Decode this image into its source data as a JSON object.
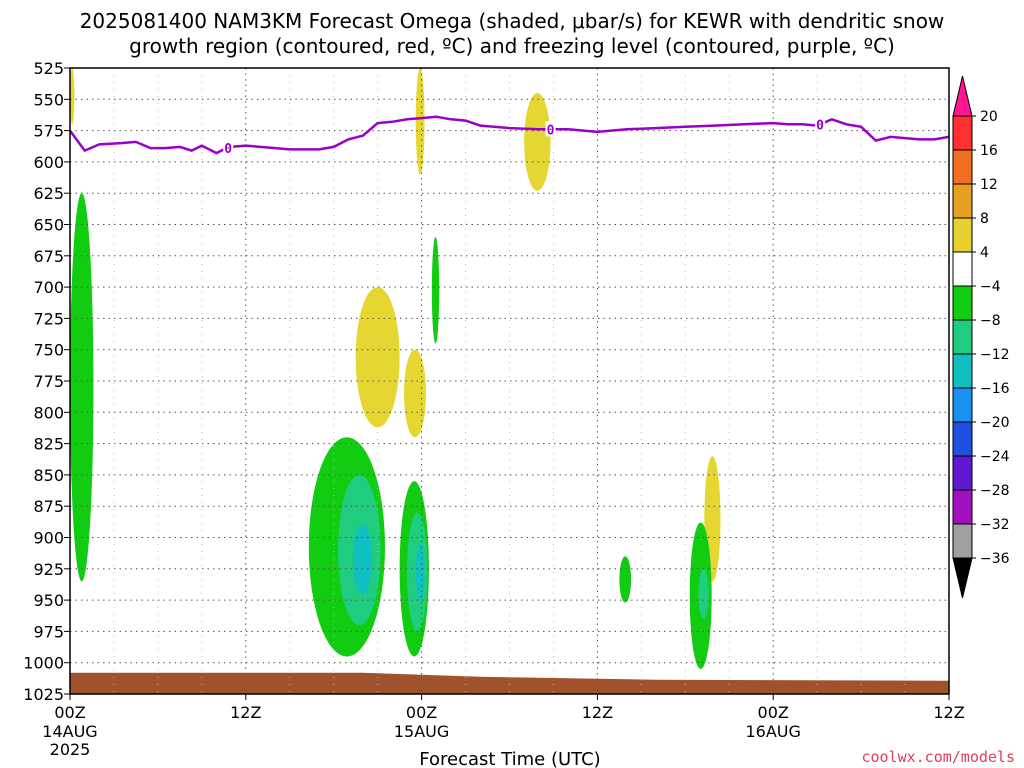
{
  "title_line1": "2025081400 NAM3KM Forecast Omega (shaded, μbar/s) for KEWR with dendritic snow",
  "title_line2": "growth region (contoured, red, ºC) and freezing level (contoured, purple, ºC)",
  "credit": "coolwx.com/models",
  "chart_data": {
    "type": "heatmap",
    "xlabel": "Forecast Time (UTC)",
    "ylabel": "",
    "x_range_hours": [
      0,
      60
    ],
    "x_ticks": [
      {
        "hour": 0,
        "label": "00Z",
        "sub1": "14AUG",
        "sub2": "2025"
      },
      {
        "hour": 12,
        "label": "12Z",
        "sub1": "",
        "sub2": ""
      },
      {
        "hour": 24,
        "label": "00Z",
        "sub1": "15AUG",
        "sub2": ""
      },
      {
        "hour": 36,
        "label": "12Z",
        "sub1": "",
        "sub2": ""
      },
      {
        "hour": 48,
        "label": "00Z",
        "sub1": "16AUG",
        "sub2": ""
      },
      {
        "hour": 60,
        "label": "12Z",
        "sub1": "",
        "sub2": ""
      }
    ],
    "y_range_hPa": [
      525,
      1025
    ],
    "y_ticks": [
      "525",
      "550",
      "575",
      "600",
      "625",
      "650",
      "675",
      "700",
      "725",
      "750",
      "775",
      "800",
      "825",
      "850",
      "875",
      "900",
      "925",
      "950",
      "975",
      "1000",
      "1025"
    ],
    "grid": true,
    "colorbar": {
      "units": "μbar/s",
      "labels": [
        "20",
        "16",
        "12",
        "8",
        "4",
        "-4",
        "-8",
        "-12",
        "-16",
        "-20",
        "-24",
        "-28",
        "-32",
        "-36"
      ],
      "colors": [
        "#ff1493",
        "#ff3030",
        "#f07020",
        "#e8a020",
        "#e8d030",
        "#ffffff",
        "#11cc11",
        "#20cc80",
        "#10c0c0",
        "#1890f0",
        "#2050e0",
        "#6018d0",
        "#a010c0",
        "#a0a0a0",
        "#000000"
      ]
    },
    "freezing_level": {
      "label": "0",
      "hours": [
        0,
        1,
        2,
        3.5,
        4.5,
        5.5,
        6.5,
        7.5,
        8.3,
        9,
        10,
        10.5,
        11,
        12,
        13,
        14,
        15,
        16,
        17,
        18,
        19,
        20,
        21,
        22,
        23,
        24,
        25,
        26,
        27,
        28,
        30,
        32,
        34,
        36,
        38,
        40,
        42,
        44,
        46,
        48,
        49,
        50,
        51,
        52,
        53,
        54,
        55,
        56,
        57,
        58,
        59,
        60
      ],
      "pressure": [
        575,
        591,
        586,
        585,
        584,
        589,
        589,
        588,
        591,
        587,
        593,
        590,
        588,
        587,
        588,
        589,
        590,
        590,
        590,
        588,
        582,
        579,
        569,
        568,
        566,
        565,
        564,
        566,
        567,
        571,
        573,
        574,
        574,
        576,
        574,
        573,
        572,
        571,
        570,
        569,
        570,
        570,
        571,
        566,
        570,
        572,
        583,
        580,
        581,
        582,
        582,
        580
      ]
    },
    "omega_regions": [
      {
        "level": "4 to 8",
        "hours": [
          0,
          0.3
        ],
        "pressure": [
          525,
          570
        ]
      },
      {
        "level": "4 to 8",
        "hours": [
          23.6,
          24.2
        ],
        "pressure": [
          525,
          610
        ]
      },
      {
        "level": "4 to 8",
        "hours": [
          31,
          32.8
        ],
        "pressure": [
          545,
          623
        ]
      },
      {
        "level": "4 to 8",
        "hours": [
          19.5,
          22.5
        ],
        "pressure": [
          700,
          812
        ]
      },
      {
        "level": "4 to 8",
        "hours": [
          22.8,
          24.3
        ],
        "pressure": [
          750,
          820
        ]
      },
      {
        "level": "4 to 8",
        "hours": [
          43.3,
          44.4
        ],
        "pressure": [
          835,
          935
        ]
      },
      {
        "level": "-4 to -8",
        "hours": [
          0,
          1.6
        ],
        "pressure": [
          625,
          935
        ]
      },
      {
        "level": "-4 to -8",
        "hours": [
          24.7,
          25.2
        ],
        "pressure": [
          660,
          745
        ]
      },
      {
        "level": "-4 to -8",
        "hours": [
          16.3,
          21.5
        ],
        "pressure": [
          820,
          995
        ]
      },
      {
        "level": "-4 to -8",
        "hours": [
          22.5,
          24.5
        ],
        "pressure": [
          855,
          995
        ]
      },
      {
        "level": "-4 to -8",
        "hours": [
          37.5,
          38.3
        ],
        "pressure": [
          915,
          952
        ]
      },
      {
        "level": "-4 to -8",
        "hours": [
          42.3,
          43.8
        ],
        "pressure": [
          888,
          1005
        ]
      },
      {
        "level": "-8 to -12",
        "hours": [
          18.3,
          21.2
        ],
        "pressure": [
          850,
          970
        ]
      },
      {
        "level": "-8 to -12",
        "hours": [
          23.0,
          24.4
        ],
        "pressure": [
          880,
          975
        ]
      },
      {
        "level": "-8 to -12",
        "hours": [
          42.9,
          43.6
        ],
        "pressure": [
          925,
          965
        ]
      },
      {
        "level": "-12 to -16",
        "hours": [
          19.3,
          20.6
        ],
        "pressure": [
          890,
          945
        ]
      },
      {
        "level": "-12 to -16",
        "hours": [
          23.6,
          24.2
        ],
        "pressure": [
          905,
          950
        ]
      }
    ],
    "terrain_hPa": 1008
  }
}
